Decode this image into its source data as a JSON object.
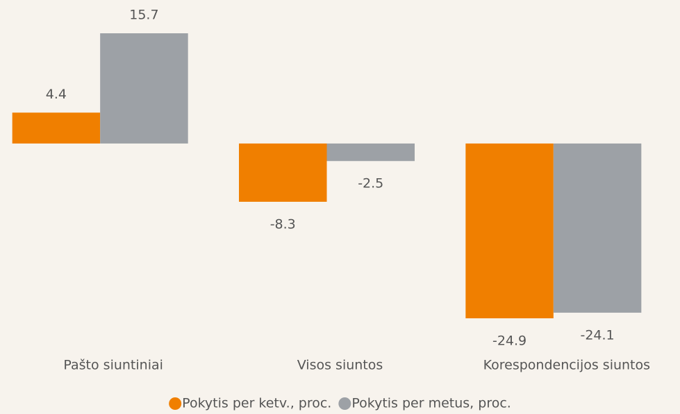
{
  "chart_data": {
    "type": "bar",
    "categories": [
      "Pašto siuntiniai",
      "Visos siuntos",
      "Korespondencijos siuntos"
    ],
    "series": [
      {
        "name": "Pokytis per ketv., proc.",
        "color": "#f07f00",
        "values": [
          4.4,
          -8.3,
          -24.9
        ]
      },
      {
        "name": "Pokytis per metus, proc.",
        "color": "#9da1a6",
        "values": [
          15.7,
          -2.5,
          -24.1
        ]
      }
    ],
    "legend": "bottom"
  }
}
